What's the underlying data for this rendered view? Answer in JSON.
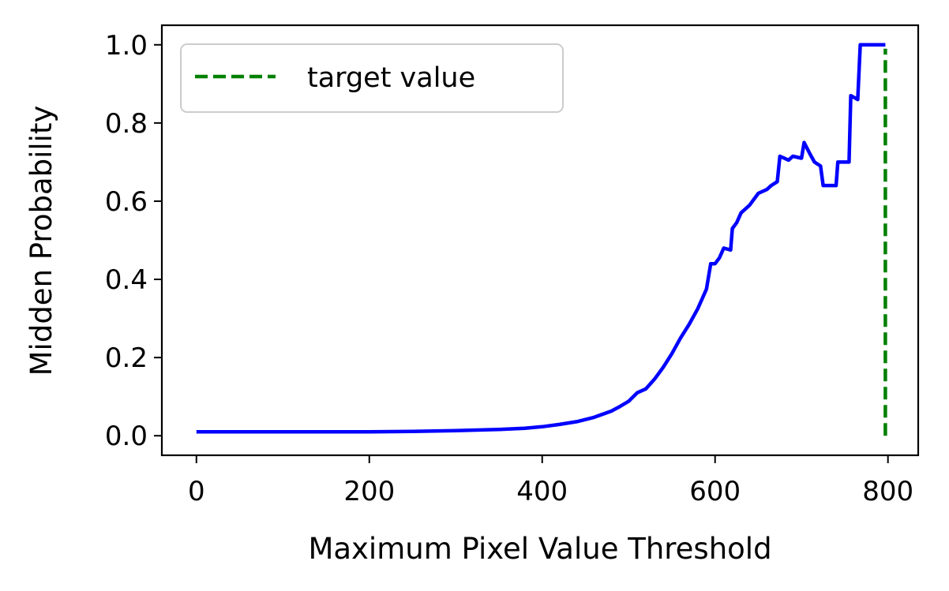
{
  "chart_data": {
    "type": "line",
    "xlabel": "Maximum Pixel Value Threshold",
    "ylabel": "Midden Probability",
    "xlim": [
      -40,
      835
    ],
    "ylim": [
      -0.05,
      1.05
    ],
    "xticks": [
      0,
      200,
      400,
      600,
      800
    ],
    "xtick_labels": [
      "0",
      "200",
      "400",
      "600",
      "800"
    ],
    "yticks": [
      0.0,
      0.2,
      0.4,
      0.6,
      0.8,
      1.0
    ],
    "ytick_labels": [
      "0.0",
      "0.2",
      "0.4",
      "0.6",
      "0.8",
      "1.0"
    ],
    "grid": false,
    "legend": {
      "position": "top-left",
      "entries": [
        {
          "label": "target value",
          "color": "#008000",
          "style": "dashed"
        }
      ]
    },
    "series": [
      {
        "color": "#0000ff",
        "style": "solid",
        "points": [
          [
            0,
            0.01
          ],
          [
            200,
            0.01
          ],
          [
            250,
            0.011
          ],
          [
            300,
            0.013
          ],
          [
            350,
            0.016
          ],
          [
            380,
            0.019
          ],
          [
            400,
            0.023
          ],
          [
            420,
            0.029
          ],
          [
            440,
            0.036
          ],
          [
            460,
            0.047
          ],
          [
            480,
            0.063
          ],
          [
            490,
            0.075
          ],
          [
            500,
            0.088
          ],
          [
            510,
            0.11
          ],
          [
            520,
            0.12
          ],
          [
            530,
            0.145
          ],
          [
            540,
            0.175
          ],
          [
            550,
            0.21
          ],
          [
            560,
            0.25
          ],
          [
            570,
            0.285
          ],
          [
            580,
            0.325
          ],
          [
            590,
            0.375
          ],
          [
            595,
            0.44
          ],
          [
            600,
            0.44
          ],
          [
            605,
            0.455
          ],
          [
            610,
            0.48
          ],
          [
            618,
            0.475
          ],
          [
            620,
            0.53
          ],
          [
            625,
            0.545
          ],
          [
            630,
            0.57
          ],
          [
            640,
            0.59
          ],
          [
            650,
            0.62
          ],
          [
            660,
            0.63
          ],
          [
            665,
            0.64
          ],
          [
            672,
            0.65
          ],
          [
            675,
            0.715
          ],
          [
            685,
            0.705
          ],
          [
            690,
            0.715
          ],
          [
            700,
            0.71
          ],
          [
            703,
            0.75
          ],
          [
            710,
            0.72
          ],
          [
            715,
            0.7
          ],
          [
            722,
            0.69
          ],
          [
            725,
            0.64
          ],
          [
            740,
            0.64
          ],
          [
            742,
            0.7
          ],
          [
            755,
            0.7
          ],
          [
            757,
            0.87
          ],
          [
            765,
            0.86
          ],
          [
            768,
            1.0
          ],
          [
            797,
            1.0
          ]
        ]
      },
      {
        "name": "target value",
        "color": "#008000",
        "style": "dashed",
        "points": [
          [
            797,
            0.0
          ],
          [
            797,
            0.99
          ]
        ]
      }
    ]
  }
}
